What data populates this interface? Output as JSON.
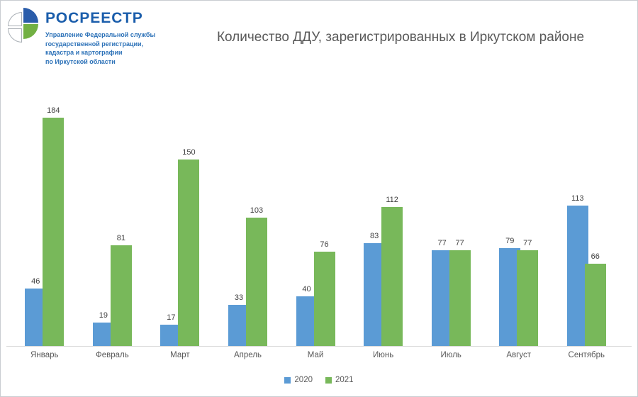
{
  "logo": {
    "brand": "РОСРЕЕСТР",
    "org_lines": [
      "Управление Федеральной службы",
      "государственной регистрации,",
      "кадастра и картографии",
      "по Иркутской области"
    ],
    "colors": {
      "brand_text": "#1a5dab",
      "org_text": "#2d72b8",
      "quad_blue": "#2a5caa",
      "quad_green": "#72b043"
    }
  },
  "chart_data": {
    "type": "bar",
    "title": "Количество ДДУ, зарегистрированных в Иркутском районе",
    "categories": [
      "Январь",
      "Февраль",
      "Март",
      "Апрель",
      "Май",
      "Июнь",
      "Июль",
      "Август",
      "Сентябрь"
    ],
    "series": [
      {
        "name": "2020",
        "color": "#5b9bd5",
        "values": [
          46,
          19,
          17,
          33,
          40,
          83,
          77,
          79,
          113
        ]
      },
      {
        "name": "2021",
        "color": "#78b85a",
        "values": [
          184,
          81,
          150,
          103,
          76,
          112,
          77,
          77,
          66
        ]
      }
    ],
    "xlabel": "",
    "ylabel": "",
    "ylim": [
      0,
      190
    ],
    "grid": false,
    "data_labels": true,
    "legend_position": "bottom",
    "title_color": "#595959",
    "label_color": "#404040",
    "axis_text_color": "#595959",
    "axis_line_color": "#d9d9d9"
  }
}
